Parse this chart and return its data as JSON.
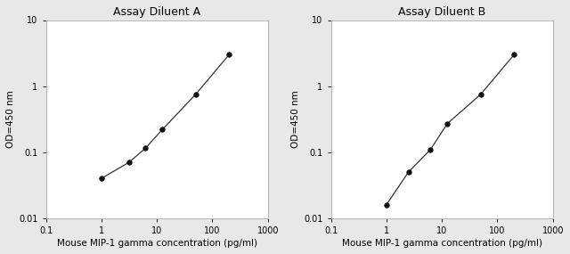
{
  "panel_A": {
    "title": "Assay Diluent A",
    "x_data": [
      1,
      3.125,
      6.25,
      12.5,
      50,
      200
    ],
    "y_data": [
      0.04,
      0.07,
      0.115,
      0.22,
      0.75,
      3.0
    ],
    "xlabel": "Mouse MIP-1 gamma concentration (pg/ml)",
    "ylabel": "OD=450 nm"
  },
  "panel_B": {
    "title": "Assay Diluent B",
    "x_data": [
      1,
      2.5,
      6.25,
      12.5,
      50,
      200
    ],
    "y_data": [
      0.016,
      0.05,
      0.11,
      0.27,
      0.75,
      3.0
    ],
    "xlabel": "Mouse MIP-1 gamma concentration (pg/ml)",
    "ylabel": "OD=450 nm"
  },
  "xlim": [
    0.1,
    1000
  ],
  "ylim": [
    0.01,
    10
  ],
  "xticks": [
    0.1,
    1,
    10,
    100,
    1000
  ],
  "xtick_labels": [
    "0.1",
    "1",
    "10",
    "100",
    "1000"
  ],
  "yticks": [
    0.01,
    0.1,
    1,
    10
  ],
  "ytick_labels": [
    "0.01",
    "0.1",
    "1",
    "10"
  ],
  "line_color": "#333333",
  "marker_color": "#111111",
  "bg_color": "#e8e8e8",
  "plot_bg": "#ffffff",
  "title_fontsize": 9,
  "label_fontsize": 7.5,
  "tick_fontsize": 7,
  "marker_size": 4,
  "line_width": 0.9
}
